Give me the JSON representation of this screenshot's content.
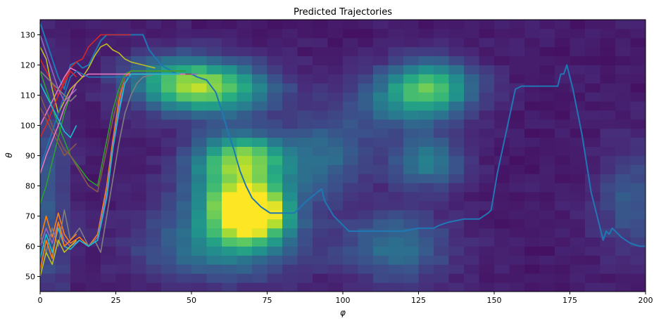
{
  "chart_data": {
    "type": "heatmap",
    "title": "Predicted Trajectories",
    "xlabel": "φ",
    "ylabel": "θ",
    "xlim": [
      0,
      200
    ],
    "ylim": [
      45,
      135
    ],
    "xticks": [
      0,
      25,
      50,
      75,
      100,
      125,
      150,
      175,
      200
    ],
    "yticks": [
      50,
      60,
      70,
      80,
      90,
      100,
      110,
      120,
      130
    ],
    "colormap": "viridis",
    "grid": false,
    "legend": "none",
    "heatmap": {
      "x_bins": 40,
      "y_bins": 30,
      "cell_width": 5,
      "cell_height": 3,
      "hotspots": [
        {
          "x": 70,
          "y": 71,
          "sx": 8,
          "sy": 6,
          "v": 0.95
        },
        {
          "x": 65,
          "y": 80,
          "sx": 12,
          "sy": 10,
          "v": 0.55
        },
        {
          "x": 58,
          "y": 112,
          "sx": 14,
          "sy": 6,
          "v": 0.55
        },
        {
          "x": 45,
          "y": 115,
          "sx": 12,
          "sy": 6,
          "v": 0.4
        },
        {
          "x": 68,
          "y": 90,
          "sx": 10,
          "sy": 5,
          "v": 0.45
        },
        {
          "x": 60,
          "y": 60,
          "sx": 18,
          "sy": 8,
          "v": 0.35
        },
        {
          "x": 130,
          "y": 113,
          "sx": 10,
          "sy": 6,
          "v": 0.5
        },
        {
          "x": 120,
          "y": 108,
          "sx": 12,
          "sy": 7,
          "v": 0.3
        },
        {
          "x": 128,
          "y": 88,
          "sx": 8,
          "sy": 6,
          "v": 0.35
        },
        {
          "x": 118,
          "y": 60,
          "sx": 12,
          "sy": 8,
          "v": 0.3
        },
        {
          "x": 95,
          "y": 90,
          "sx": 10,
          "sy": 10,
          "v": 0.25
        },
        {
          "x": 195,
          "y": 75,
          "sx": 8,
          "sy": 12,
          "v": 0.2
        },
        {
          "x": 3,
          "y": 75,
          "sx": 5,
          "sy": 25,
          "v": 0.2
        }
      ],
      "base_value": 0.08
    },
    "series": [
      {
        "color": "#1f77b4",
        "x": [
          0,
          2,
          4,
          6,
          8,
          10,
          12,
          14,
          16,
          18,
          20,
          22,
          24,
          26,
          28,
          30,
          32,
          34,
          36,
          40,
          45,
          50,
          52,
          55,
          58,
          60,
          62,
          64,
          66,
          68,
          70,
          73,
          76,
          78,
          80,
          84,
          88,
          93,
          94,
          97,
          100,
          102,
          105,
          110,
          115,
          120,
          125,
          130,
          132,
          135,
          140,
          145,
          148,
          149,
          151,
          154,
          157,
          159,
          162,
          166,
          171,
          172,
          173,
          174,
          176,
          179,
          182,
          185,
          186,
          187,
          188,
          189,
          192,
          195,
          198,
          200
        ],
        "y": [
          134,
          128,
          122,
          116,
          112,
          120,
          121,
          119,
          120,
          124,
          128,
          130,
          130,
          130,
          130,
          130,
          130,
          130,
          125,
          120,
          117,
          117,
          116,
          115,
          111,
          105,
          98,
          92,
          85,
          80,
          76,
          73,
          71,
          71,
          71,
          71,
          75,
          79,
          75,
          70,
          67,
          65,
          65,
          65,
          65,
          65,
          66,
          66,
          67,
          68,
          69,
          69,
          71,
          72,
          84,
          98,
          112,
          113,
          113,
          113,
          113,
          117,
          117,
          120,
          112,
          97,
          78,
          66,
          62,
          65,
          64,
          66,
          63,
          61,
          60,
          60
        ]
      },
      {
        "color": "#ff7f0e",
        "x": [
          0,
          2,
          4,
          6,
          8,
          10,
          13,
          16,
          19,
          22,
          24,
          26,
          28,
          30,
          34,
          38,
          42,
          46
        ],
        "y": [
          62,
          70,
          63,
          71,
          64,
          61,
          63,
          60,
          64,
          80,
          95,
          108,
          116,
          118,
          118,
          118,
          118,
          118
        ]
      },
      {
        "color": "#2ca02c",
        "x": [
          0,
          2,
          4,
          6,
          8,
          10,
          13,
          16,
          19,
          22,
          24,
          26,
          28,
          30,
          34,
          38,
          42,
          48
        ],
        "y": [
          118,
          112,
          106,
          100,
          95,
          90,
          86,
          82,
          80,
          95,
          105,
          112,
          117,
          118,
          118,
          118,
          118,
          118
        ]
      },
      {
        "color": "#d62728",
        "x": [
          0,
          2,
          4,
          6,
          8,
          10,
          12,
          14,
          16,
          18,
          20,
          22,
          26,
          30
        ],
        "y": [
          122,
          118,
          114,
          110,
          115,
          119,
          121,
          122,
          126,
          128,
          130,
          130,
          130,
          130
        ]
      },
      {
        "color": "#9467bd",
        "x": [
          0,
          2,
          4,
          6,
          8,
          10,
          13,
          16,
          19,
          22,
          24,
          26,
          28,
          30,
          34,
          40,
          46,
          52
        ],
        "y": [
          60,
          66,
          61,
          68,
          62,
          60,
          62,
          60,
          63,
          78,
          93,
          106,
          114,
          117,
          117,
          117,
          117,
          117
        ]
      },
      {
        "color": "#8c564b",
        "x": [
          0,
          2,
          4,
          6,
          8,
          10,
          13,
          16,
          19,
          22,
          24,
          26,
          28,
          30,
          34,
          38,
          44,
          50
        ],
        "y": [
          110,
          105,
          100,
          96,
          92,
          90,
          85,
          80,
          78,
          92,
          102,
          110,
          116,
          117,
          117,
          117,
          117,
          117
        ]
      },
      {
        "color": "#e377c2",
        "x": [
          0,
          2,
          4,
          6,
          8,
          10,
          12,
          14,
          16,
          20,
          24,
          26,
          28,
          30,
          34,
          40,
          48
        ],
        "y": [
          100,
          104,
          108,
          112,
          116,
          119,
          118,
          116,
          117,
          117,
          117,
          117,
          117,
          117,
          117,
          117,
          117
        ]
      },
      {
        "color": "#7f7f7f",
        "x": [
          0,
          2,
          4,
          6,
          8,
          10,
          13,
          16,
          18,
          20,
          22,
          24,
          26,
          28,
          30,
          32,
          34,
          38,
          44
        ],
        "y": [
          64,
          58,
          66,
          60,
          72,
          62,
          66,
          60,
          62,
          58,
          70,
          82,
          94,
          104,
          110,
          114,
          116,
          117,
          117
        ]
      },
      {
        "color": "#bcbd22",
        "x": [
          0,
          2,
          4,
          6,
          8,
          10,
          12,
          14,
          16,
          18,
          20,
          22,
          24,
          26,
          28,
          30,
          34,
          38
        ],
        "y": [
          126,
          122,
          112,
          104,
          108,
          112,
          114,
          116,
          119,
          123,
          126,
          127,
          125,
          124,
          122,
          121,
          120,
          119
        ]
      },
      {
        "color": "#17becf",
        "x": [
          0,
          2,
          4,
          6,
          8,
          10,
          13,
          16,
          19,
          22,
          24,
          26,
          28,
          30,
          34,
          40,
          46
        ],
        "y": [
          56,
          64,
          58,
          66,
          60,
          59,
          62,
          60,
          62,
          76,
          92,
          104,
          114,
          117,
          117,
          117,
          117
        ]
      },
      {
        "color": "#1f77b4",
        "x": [
          0,
          2,
          4,
          6,
          8,
          10,
          12,
          14,
          16,
          20,
          24,
          28,
          32
        ],
        "y": [
          86,
          92,
          98,
          104,
          110,
          116,
          118,
          117,
          116,
          116,
          116,
          116,
          116
        ]
      },
      {
        "color": "#ff7f0e",
        "x": [
          0,
          2,
          4,
          6,
          8,
          10,
          12
        ],
        "y": [
          52,
          62,
          56,
          68,
          60,
          62,
          64
        ]
      },
      {
        "color": "#2ca02c",
        "x": [
          0,
          2,
          4,
          6,
          8,
          10,
          12
        ],
        "y": [
          74,
          80,
          88,
          96,
          104,
          110,
          112
        ]
      },
      {
        "color": "#d62728",
        "x": [
          0,
          2,
          4,
          6,
          8,
          10,
          12
        ],
        "y": [
          96,
          100,
          105,
          110,
          114,
          118,
          116
        ]
      },
      {
        "color": "#9467bd",
        "x": [
          0,
          2,
          4,
          6,
          8,
          10,
          12
        ],
        "y": [
          130,
          124,
          118,
          112,
          108,
          110,
          112
        ]
      },
      {
        "color": "#8c564b",
        "x": [
          0,
          2,
          4,
          6,
          8,
          10,
          12
        ],
        "y": [
          106,
          102,
          98,
          94,
          90,
          92,
          94
        ]
      },
      {
        "color": "#e377c2",
        "x": [
          0,
          2,
          4,
          6,
          8,
          10,
          12
        ],
        "y": [
          84,
          90,
          95,
          100,
          106,
          110,
          114
        ]
      },
      {
        "color": "#17becf",
        "x": [
          0,
          2,
          4,
          6,
          8,
          10,
          12
        ],
        "y": [
          114,
          110,
          106,
          102,
          98,
          96,
          100
        ]
      },
      {
        "color": "#bcbd22",
        "x": [
          0,
          2,
          4,
          6,
          8,
          10,
          12
        ],
        "y": [
          50,
          58,
          54,
          62,
          58,
          60,
          62
        ]
      },
      {
        "color": "#7f7f7f",
        "x": [
          0,
          2,
          4,
          6,
          8,
          10,
          12
        ],
        "y": [
          118,
          116,
          114,
          112,
          110,
          108,
          110
        ]
      }
    ]
  }
}
